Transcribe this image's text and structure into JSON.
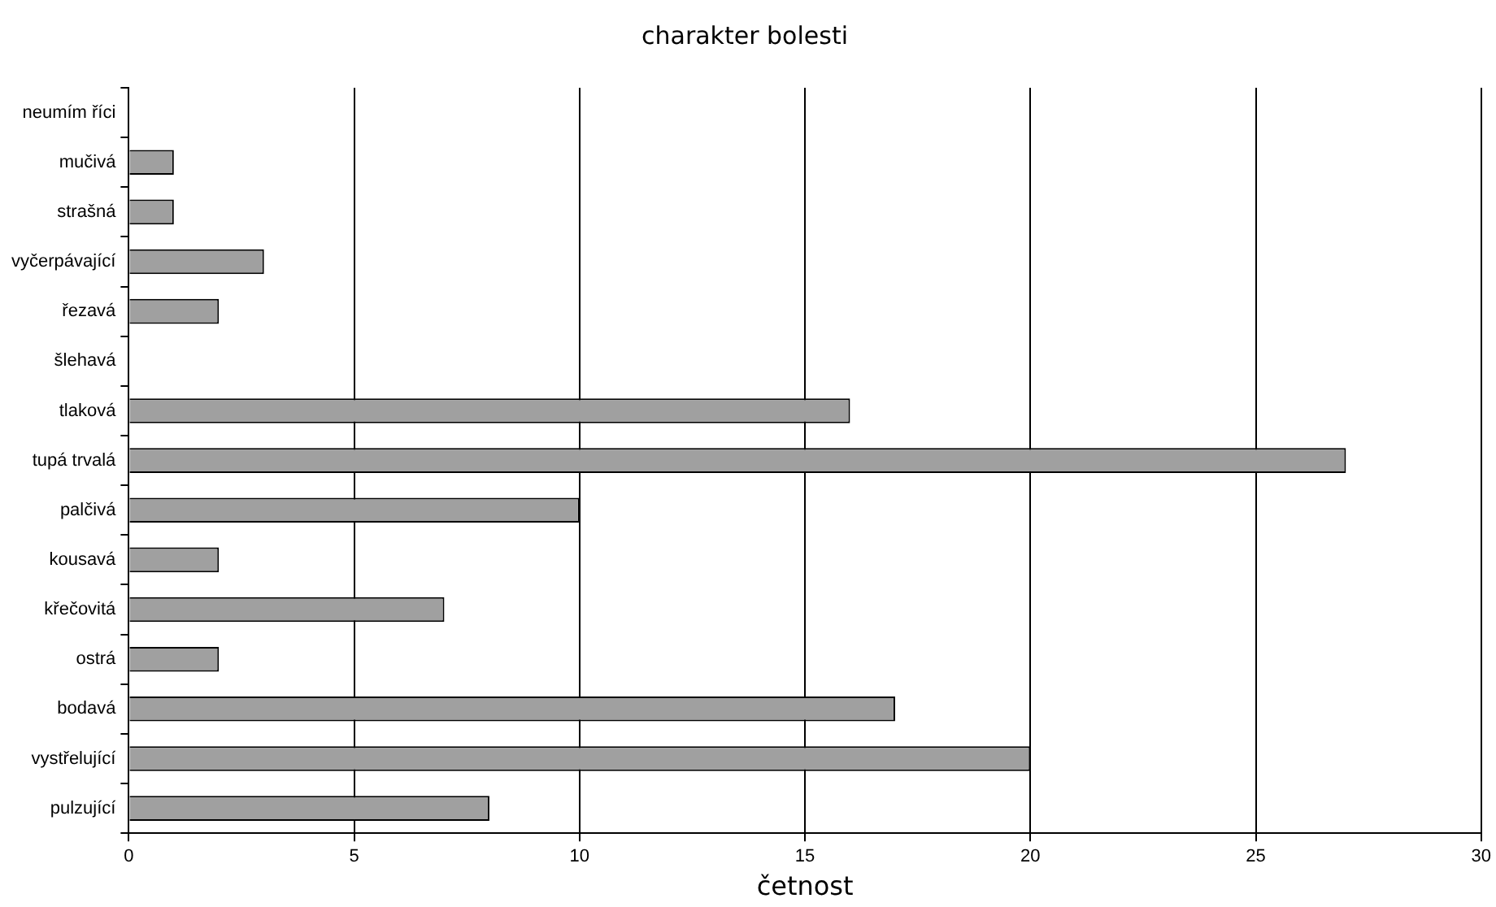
{
  "chart_data": {
    "type": "bar",
    "orientation": "horizontal",
    "title": "charakter bolesti",
    "xlabel": "četnost",
    "categories": [
      "neumím říci",
      "mučivá",
      "strašná",
      "vyčerpávající",
      "řezavá",
      "šlehavá",
      "tlaková",
      "tupá trvalá",
      "palčivá",
      "kousavá",
      "křečovitá",
      "ostrá",
      "bodavá",
      "vystřelující",
      "pulzující"
    ],
    "values": [
      0,
      1,
      1,
      3,
      2,
      0,
      16,
      27,
      10,
      2,
      7,
      2,
      17,
      20,
      8
    ],
    "color": "#a0a0a0",
    "xlim": [
      0,
      30
    ],
    "xticks": [
      0,
      5,
      10,
      15,
      20,
      25,
      30
    ],
    "grid": "x",
    "legend": false
  }
}
